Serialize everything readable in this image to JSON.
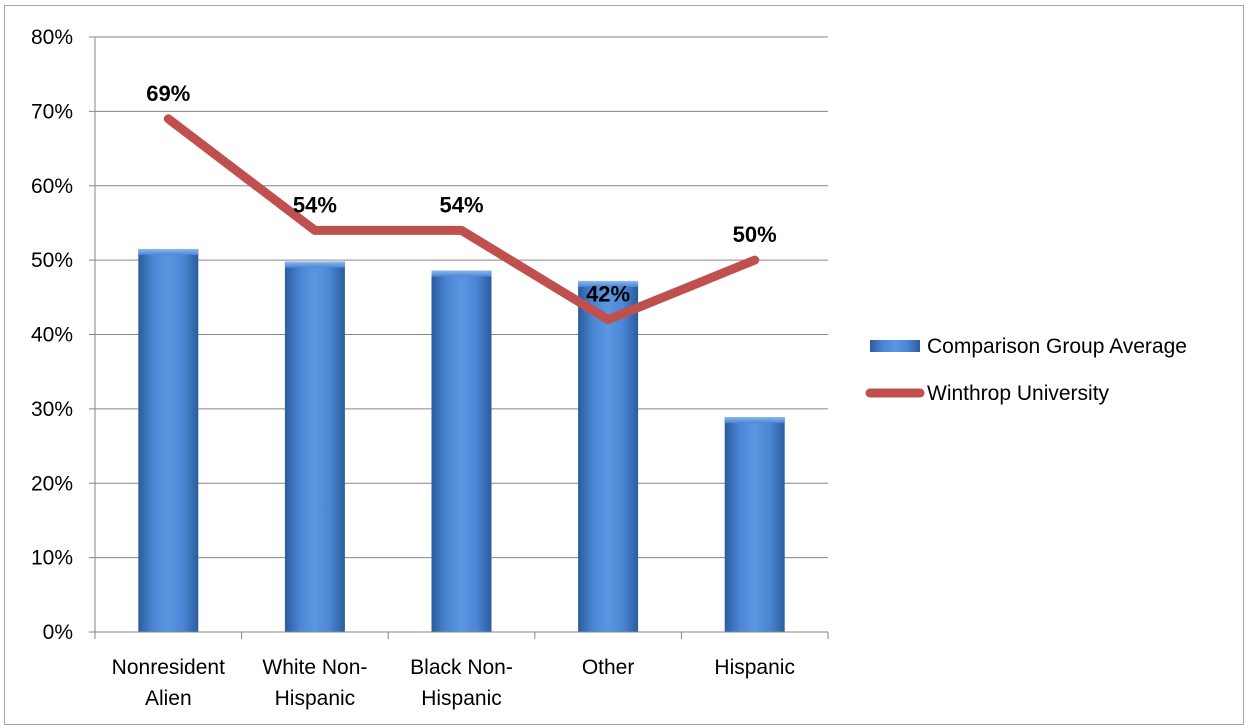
{
  "chart_data": {
    "type": "bar",
    "categories": [
      "Nonresident\nAlien",
      "White Non-\nHispanic",
      "Black Non-\nHispanic",
      "Other",
      "Hispanic"
    ],
    "ylim": [
      0,
      80
    ],
    "y_ticks": [
      "0%",
      "10%",
      "20%",
      "30%",
      "40%",
      "50%",
      "60%",
      "70%",
      "80%"
    ],
    "grid": true,
    "legend_position": "right",
    "series": [
      {
        "name": "Comparison Group Average",
        "type": "bar",
        "values": [
          51.5,
          49.8,
          48.6,
          47.2,
          28.9
        ],
        "color": "#4a86d4"
      },
      {
        "name": "Winthrop University",
        "type": "line",
        "values": [
          69,
          54,
          54,
          42,
          50
        ],
        "labels": [
          "69%",
          "54%",
          "54%",
          "42%",
          "50%"
        ],
        "color": "#c0504d"
      }
    ]
  }
}
